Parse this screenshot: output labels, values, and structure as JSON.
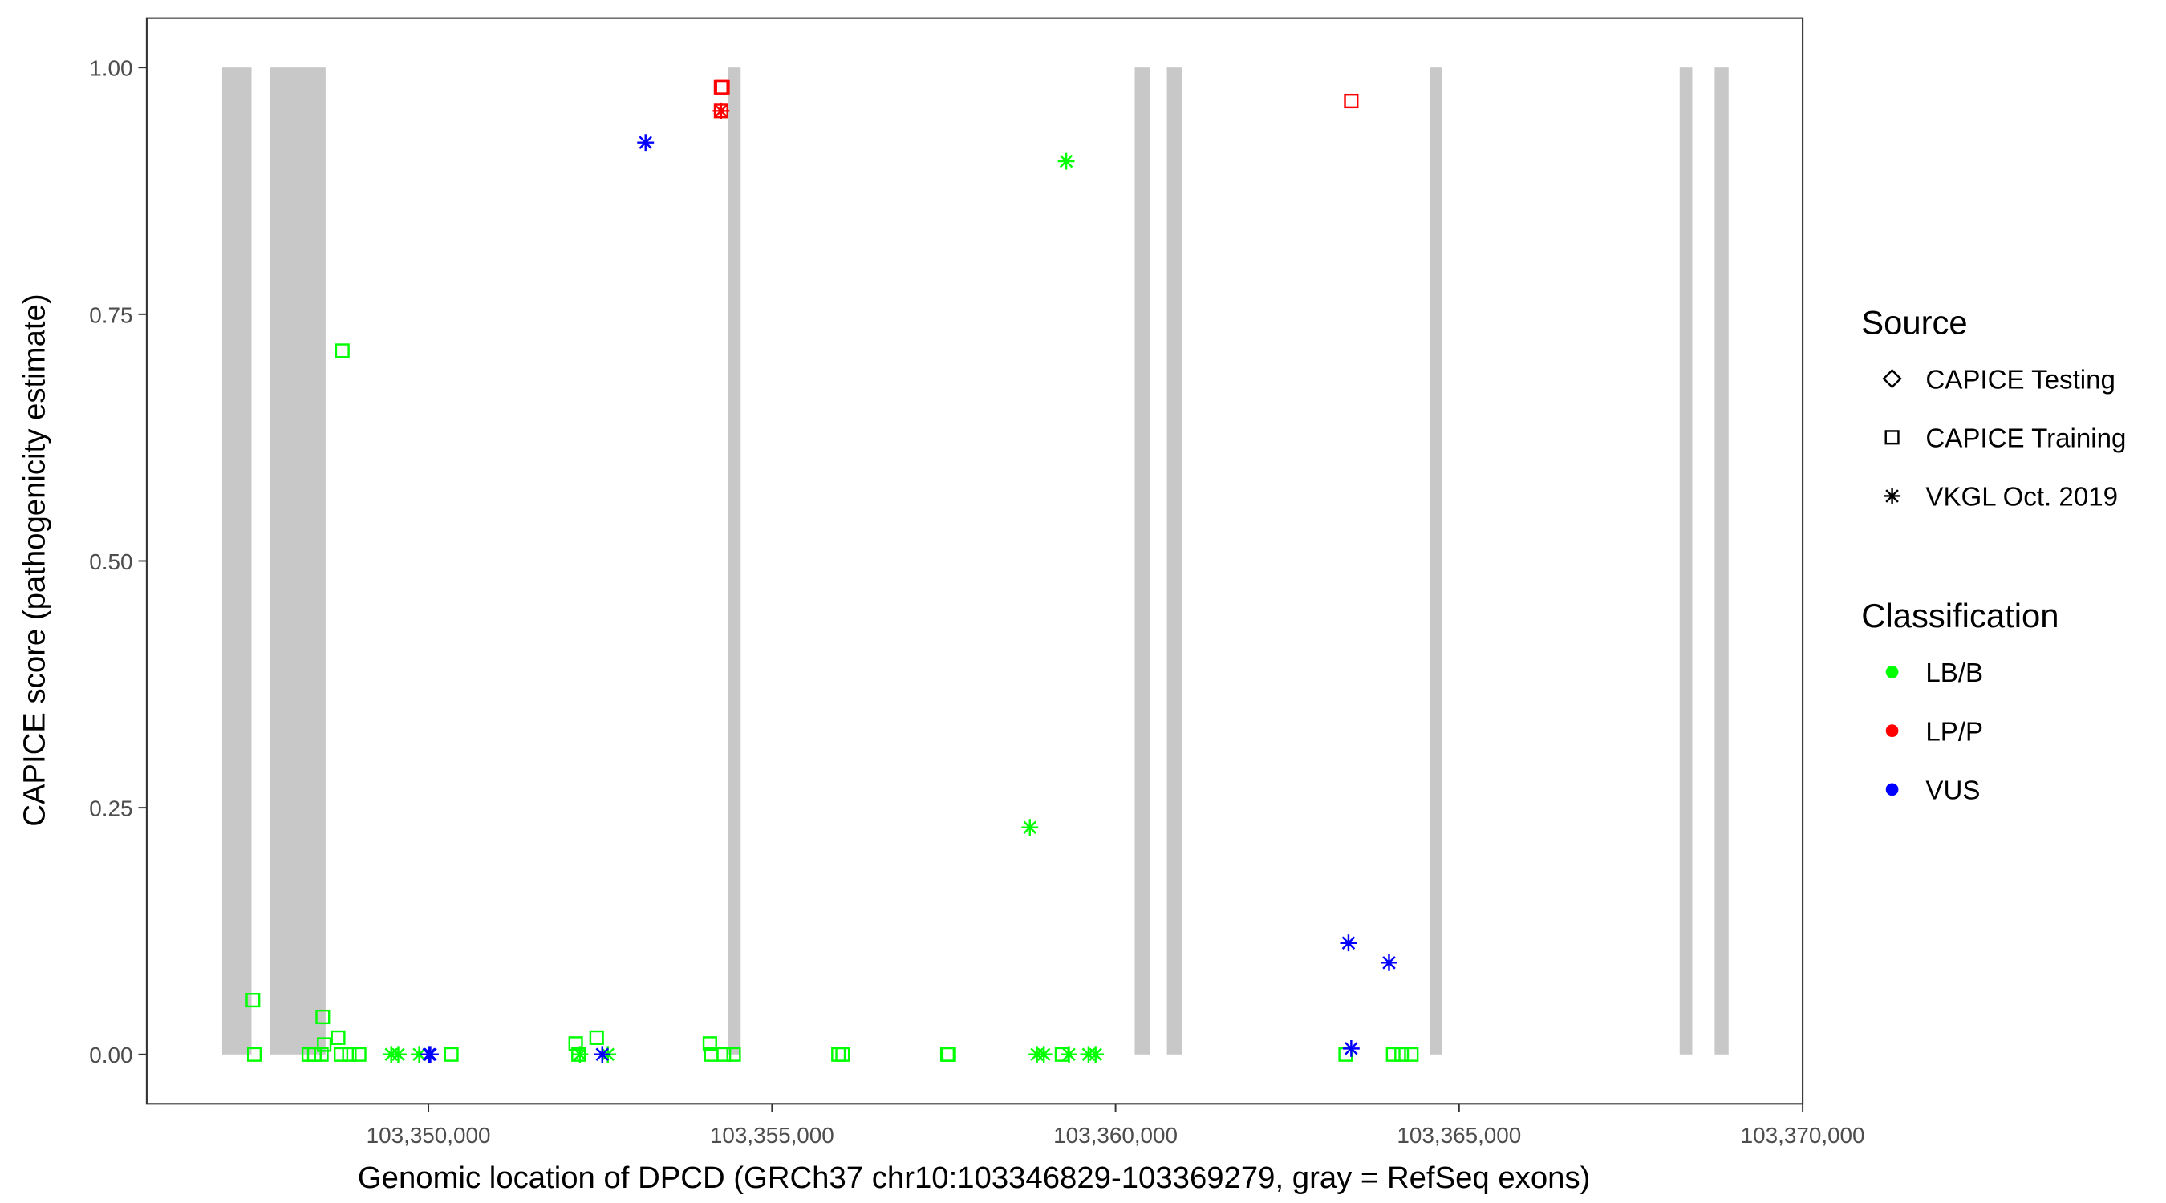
{
  "chart_data": {
    "type": "scatter",
    "x_label": "Genomic location of DPCD (GRCh37 chr10:103346829-103369279, gray = RefSeq exons)",
    "y_label": "CAPICE score (pathogenicity estimate)",
    "xlim": [
      103345900,
      103370000
    ],
    "ylim": [
      -0.05,
      1.05
    ],
    "xticks": [
      {
        "value": 103350000,
        "label": "103,350,000"
      },
      {
        "value": 103355000,
        "label": "103,355,000"
      },
      {
        "value": 103360000,
        "label": "103,360,000"
      },
      {
        "value": 103365000,
        "label": "103,365,000"
      },
      {
        "value": 103370000,
        "label": "103,370,000"
      }
    ],
    "yticks": [
      {
        "value": 0,
        "label": "0.00"
      },
      {
        "value": 0.25,
        "label": "0.25"
      },
      {
        "value": 0.5,
        "label": "0.50"
      },
      {
        "value": 0.75,
        "label": "0.75"
      },
      {
        "value": 1,
        "label": "1.00"
      }
    ],
    "exon_color": "#c8c8c8",
    "exons": [
      [
        103346998,
        103347425
      ],
      [
        103347690,
        103348503
      ],
      [
        103354361,
        103354544
      ],
      [
        103360279,
        103360503
      ],
      [
        103360747,
        103360970
      ],
      [
        103364570,
        103364753
      ],
      [
        103368210,
        103368393
      ],
      [
        103368719,
        103368922
      ]
    ],
    "shape_legend": {
      "title": "Source",
      "entries": [
        {
          "name": "CAPICE Testing",
          "shape": "diamond"
        },
        {
          "name": "CAPICE Training",
          "shape": "square"
        },
        {
          "name": "VKGL Oct. 2019",
          "shape": "star"
        }
      ]
    },
    "color_legend": {
      "title": "Classification",
      "entries": [
        {
          "name": "LB/B",
          "color": "#00ff00"
        },
        {
          "name": "LP/P",
          "color": "#ff0000"
        },
        {
          "name": "VUS",
          "color": "#0000ff"
        }
      ]
    },
    "series": [
      {
        "source": "CAPICE Training",
        "classification": "LB/B",
        "shape": "square",
        "color": "#00ff00",
        "x": [
          103347446,
          103347466,
          103348259,
          103348340,
          103348442,
          103348462,
          103348483,
          103348686,
          103348747,
          103348727,
          103348849,
          103348991,
          103350333,
          103352143,
          103352184,
          103352448,
          103354096,
          103354116,
          103354299,
          103354442,
          103355967,
          103356028,
          103357553,
          103357573,
          103359221,
          103363349,
          103364041,
          103364163,
          103364305
        ],
        "values": [
          0.055,
          0,
          0,
          0,
          0,
          0.038,
          0.01,
          0.017,
          0.713,
          0,
          0,
          0,
          0,
          0.011,
          0,
          0.017,
          0.011,
          0,
          0,
          0,
          0,
          0,
          0,
          0,
          0,
          0,
          0,
          0,
          0
        ]
      },
      {
        "source": "VKGL Oct. 2019",
        "classification": "LB/B",
        "shape": "star",
        "color": "#00ff00",
        "x": [
          103349459,
          103349561,
          103349866,
          103352204,
          103352611,
          103358753,
          103359282,
          103358856,
          103358956,
          103359322,
          103359607,
          103359709
        ],
        "values": [
          0,
          0,
          0,
          0,
          0,
          0.23,
          0.905,
          0,
          0,
          0,
          0,
          0
        ]
      },
      {
        "source": "CAPICE Training",
        "classification": "LP/P",
        "shape": "square",
        "color": "#ff0000",
        "x": [
          103354259,
          103354279,
          103354259,
          103363430
        ],
        "values": [
          0.98,
          0.98,
          0.956,
          0.966
        ]
      },
      {
        "source": "VKGL Oct. 2019",
        "classification": "LP/P",
        "shape": "star",
        "color": "#ff0000",
        "x": [
          103354259
        ],
        "values": [
          0.956
        ]
      },
      {
        "source": "VKGL Oct. 2019",
        "classification": "VUS",
        "shape": "star",
        "color": "#0000ff",
        "x": [
          103353160,
          103350008,
          103350028,
          103352530,
          103363390,
          103363980,
          103363430
        ],
        "values": [
          0.924,
          0,
          0,
          0,
          0.113,
          0.093,
          0.006
        ]
      }
    ]
  }
}
